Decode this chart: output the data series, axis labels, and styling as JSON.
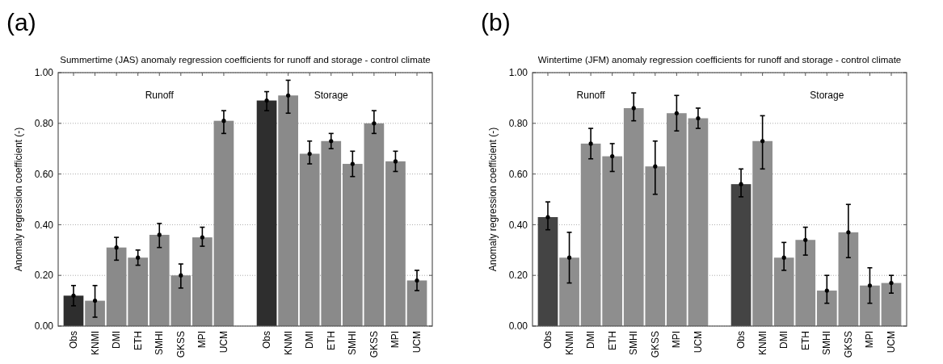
{
  "chart_data": [
    {
      "type": "bar",
      "title": "Summertime (JAS) anomaly regression coefficients for runoff and storage - control climate",
      "ylabel": "Anomaly regression coefficient (-)",
      "annotations": [
        "(a)",
        "Runoff",
        "Storage"
      ],
      "categories": [
        "Obs",
        "KNMI",
        "DMI",
        "ETH",
        "SMHI",
        "GKSS",
        "MPI",
        "UCM",
        null,
        "Obs",
        "KNMI",
        "DMI",
        "ETH",
        "SMHI",
        "GKSS",
        "MPI",
        "UCM"
      ],
      "values": [
        0.12,
        0.1,
        0.31,
        0.27,
        0.36,
        0.2,
        0.35,
        0.81,
        null,
        0.89,
        0.91,
        0.68,
        0.73,
        0.64,
        0.8,
        0.65,
        0.18
      ],
      "errors": [
        [
          0.08,
          0.16
        ],
        [
          0.035,
          0.16
        ],
        [
          0.26,
          0.35
        ],
        [
          0.24,
          0.3
        ],
        [
          0.31,
          0.405
        ],
        [
          0.15,
          0.245
        ],
        [
          0.315,
          0.39
        ],
        [
          0.76,
          0.85
        ],
        null,
        [
          0.85,
          0.925
        ],
        [
          0.84,
          0.97
        ],
        [
          0.64,
          0.73
        ],
        [
          0.7,
          0.76
        ],
        [
          0.59,
          0.69
        ],
        [
          0.76,
          0.85
        ],
        [
          0.61,
          0.69
        ],
        [
          0.14,
          0.22
        ]
      ],
      "colors": [
        "#2e2e2e",
        "#8a8a8a",
        "#8a8a8a",
        "#8a8a8a",
        "#8a8a8a",
        "#8a8a8a",
        "#8a8a8a",
        "#8a8a8a",
        null,
        "#2e2e2e",
        "#8a8a8a",
        "#8a8a8a",
        "#8a8a8a",
        "#8a8a8a",
        "#8a8a8a",
        "#8a8a8a",
        "#8a8a8a"
      ],
      "marker": "circle",
      "ylim": [
        0,
        1
      ],
      "yticks": [
        {
          "value": 0,
          "label": "0.00"
        },
        {
          "value": 0.2,
          "label": "0.20"
        },
        {
          "value": 0.4,
          "label": "0.40"
        },
        {
          "value": 0.6,
          "label": "0.60"
        },
        {
          "value": 0.8,
          "label": "0.80"
        },
        {
          "value": 1,
          "label": "1.00"
        }
      ],
      "grid": "y"
    },
    {
      "type": "bar",
      "title": "Wintertime (JFM) anomaly regression coefficients for runoff and storage - control climate",
      "ylabel": "Anomaly regression coefficient (-)",
      "annotations": [
        "(b)",
        "Runoff",
        "Storage"
      ],
      "categories": [
        "Obs",
        "KNMI",
        "DMI",
        "ETH",
        "SMHI",
        "GKSS",
        "MPI",
        "UCM",
        null,
        "Obs",
        "KNMI",
        "DMI",
        "ETH",
        "SMHI",
        "GKSS",
        "MPI",
        "UCM"
      ],
      "values": [
        0.43,
        0.27,
        0.72,
        0.67,
        0.86,
        0.63,
        0.84,
        0.82,
        null,
        0.56,
        0.73,
        0.27,
        0.34,
        0.14,
        0.37,
        0.16,
        0.17
      ],
      "errors": [
        [
          0.38,
          0.49
        ],
        [
          0.17,
          0.37
        ],
        [
          0.66,
          0.78
        ],
        [
          0.61,
          0.72
        ],
        [
          0.81,
          0.92
        ],
        [
          0.52,
          0.73
        ],
        [
          0.77,
          0.91
        ],
        [
          0.78,
          0.86
        ],
        null,
        [
          0.51,
          0.62
        ],
        [
          0.62,
          0.83
        ],
        [
          0.22,
          0.33
        ],
        [
          0.28,
          0.39
        ],
        [
          0.09,
          0.2
        ],
        [
          0.27,
          0.48
        ],
        [
          0.09,
          0.23
        ],
        [
          0.13,
          0.2
        ]
      ],
      "colors": [
        "#444444",
        "#8e8e8e",
        "#8e8e8e",
        "#8e8e8e",
        "#8e8e8e",
        "#8e8e8e",
        "#8e8e8e",
        "#8e8e8e",
        null,
        "#444444",
        "#8e8e8e",
        "#8e8e8e",
        "#8e8e8e",
        "#8e8e8e",
        "#8e8e8e",
        "#8e8e8e",
        "#8e8e8e"
      ],
      "marker": "circle",
      "ylim": [
        0,
        1
      ],
      "yticks": [
        {
          "value": 0,
          "label": "0.00"
        },
        {
          "value": 0.2,
          "label": "0.20"
        },
        {
          "value": 0.4,
          "label": "0.40"
        },
        {
          "value": 0.6,
          "label": "0.60"
        },
        {
          "value": 0.8,
          "label": "0.80"
        },
        {
          "value": 1,
          "label": "1.00"
        }
      ],
      "grid": "y"
    }
  ]
}
